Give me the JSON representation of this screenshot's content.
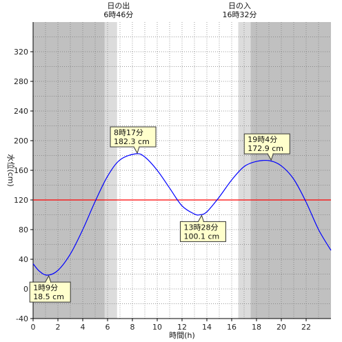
{
  "chart_data": {
    "type": "line",
    "xlabel": "時間(h)",
    "ylabel": "水位(cm)",
    "xlim": [
      0,
      24
    ],
    "ylim": [
      -40,
      360
    ],
    "x_ticks": [
      0,
      2,
      4,
      6,
      8,
      10,
      12,
      14,
      16,
      18,
      20,
      22
    ],
    "y_ticks": [
      -40,
      0,
      40,
      80,
      120,
      160,
      200,
      240,
      280,
      320
    ],
    "grid": "dotted",
    "reference_line": {
      "value": 120,
      "color": "#ff0000"
    },
    "series": [
      {
        "color": "#0000ff",
        "x": [
          0,
          0.5,
          1.15,
          2,
          3,
          4,
          5,
          6,
          7,
          8.28,
          9,
          10,
          11,
          12,
          13,
          13.47,
          14,
          15,
          16,
          17,
          18,
          19.07,
          20,
          21,
          22,
          23,
          24
        ],
        "y": [
          34,
          24,
          18.5,
          25,
          47,
          80,
          118,
          152,
          174,
          182.3,
          178,
          160,
          136,
          112,
          101,
          100.1,
          104,
          124,
          147,
          165,
          172,
          172.9,
          166,
          148,
          117,
          80,
          52
        ]
      }
    ],
    "sun": {
      "sunrise": {
        "title": "日の出",
        "time": "6時46分",
        "x": 6.77
      },
      "sunset": {
        "title": "日の入",
        "time": "16時32分",
        "x": 16.53
      },
      "twilight_minutes": 60
    },
    "annotations": [
      {
        "line1": "1時9分",
        "line2": "18.5 cm",
        "x": 1.15,
        "y": 18.5,
        "kind": "low"
      },
      {
        "line1": "8時17分",
        "line2": "182.3 cm",
        "x": 8.28,
        "y": 182.3,
        "kind": "high"
      },
      {
        "line1": "13時28分",
        "line2": "100.1 cm",
        "x": 13.47,
        "y": 100.1,
        "kind": "low"
      },
      {
        "line1": "19時4分",
        "line2": "172.9 cm",
        "x": 19.07,
        "y": 172.9,
        "kind": "high"
      }
    ],
    "colors": {
      "night": "#c0c0c0",
      "twilight": "#dcdcdc",
      "day": "#ffffff",
      "annotation_bg": "#ffffcc"
    }
  }
}
